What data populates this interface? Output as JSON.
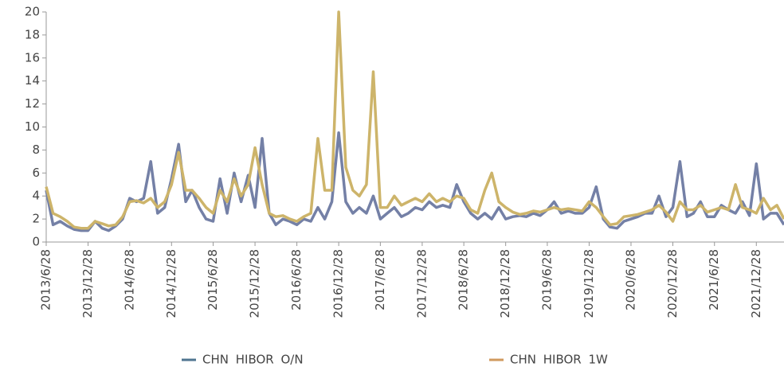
{
  "chart_data": {
    "type": "line",
    "x": [
      "2013/6/28",
      "2013/7/28",
      "2013/8/28",
      "2013/9/28",
      "2013/10/28",
      "2013/11/28",
      "2013/12/28",
      "2014/1/28",
      "2014/2/28",
      "2014/3/28",
      "2014/4/28",
      "2014/5/28",
      "2014/6/28",
      "2014/7/28",
      "2014/8/28",
      "2014/9/28",
      "2014/10/28",
      "2014/11/28",
      "2014/12/28",
      "2015/1/28",
      "2015/2/28",
      "2015/3/28",
      "2015/4/28",
      "2015/5/28",
      "2015/6/28",
      "2015/7/28",
      "2015/8/28",
      "2015/9/28",
      "2015/10/28",
      "2015/11/28",
      "2015/12/28",
      "2016/1/28",
      "2016/2/28",
      "2016/3/28",
      "2016/4/28",
      "2016/5/28",
      "2016/6/28",
      "2016/7/28",
      "2016/8/28",
      "2016/9/28",
      "2016/10/28",
      "2016/11/28",
      "2016/12/28",
      "2017/1/28",
      "2017/2/28",
      "2017/3/28",
      "2017/4/28",
      "2017/5/28",
      "2017/6/28",
      "2017/7/28",
      "2017/8/28",
      "2017/9/28",
      "2017/10/28",
      "2017/11/28",
      "2017/12/28",
      "2018/1/28",
      "2018/2/28",
      "2018/3/28",
      "2018/4/28",
      "2018/5/28",
      "2018/6/28",
      "2018/7/28",
      "2018/8/28",
      "2018/9/28",
      "2018/10/28",
      "2018/11/28",
      "2018/12/28",
      "2019/1/28",
      "2019/2/28",
      "2019/3/28",
      "2019/4/28",
      "2019/5/28",
      "2019/6/28",
      "2019/7/28",
      "2019/8/28",
      "2019/9/28",
      "2019/10/28",
      "2019/11/28",
      "2019/12/28",
      "2020/1/28",
      "2020/2/28",
      "2020/3/28",
      "2020/4/28",
      "2020/5/28",
      "2020/6/28",
      "2020/7/28",
      "2020/8/28",
      "2020/9/28",
      "2020/10/28",
      "2020/11/28",
      "2020/12/28",
      "2021/1/28",
      "2021/2/28",
      "2021/3/28",
      "2021/4/28",
      "2021/5/28",
      "2021/6/28",
      "2021/7/28",
      "2021/8/28",
      "2021/9/28",
      "2021/10/28",
      "2021/11/28",
      "2021/12/28",
      "2022/1/28",
      "2022/2/28",
      "2022/3/28",
      "2022/4/28"
    ],
    "series": [
      {
        "name": "CHN HIBOR O/N",
        "color": "#7480a6",
        "legend_color": "#4f7590",
        "values": [
          4.5,
          1.5,
          1.8,
          1.4,
          1.1,
          1.0,
          1.0,
          1.8,
          1.2,
          1.0,
          1.4,
          2.0,
          3.8,
          3.5,
          3.8,
          7.0,
          2.5,
          3.0,
          5.5,
          8.5,
          3.5,
          4.5,
          3.0,
          2.0,
          1.8,
          5.5,
          2.5,
          6.0,
          3.5,
          5.8,
          3.0,
          9.0,
          2.5,
          1.5,
          2.0,
          1.8,
          1.5,
          2.0,
          1.8,
          3.0,
          2.0,
          3.5,
          9.5,
          3.5,
          2.5,
          3.0,
          2.5,
          4.0,
          2.0,
          2.5,
          3.0,
          2.2,
          2.5,
          3.0,
          2.8,
          3.5,
          3.0,
          3.2,
          3.0,
          5.0,
          3.5,
          2.5,
          2.0,
          2.5,
          2.0,
          3.0,
          2.0,
          2.2,
          2.3,
          2.2,
          2.5,
          2.3,
          2.8,
          3.5,
          2.5,
          2.7,
          2.5,
          2.5,
          3.0,
          4.8,
          2.0,
          1.3,
          1.2,
          1.8,
          2.0,
          2.2,
          2.5,
          2.5,
          4.0,
          2.2,
          3.0,
          7.0,
          2.2,
          2.5,
          3.5,
          2.2,
          2.2,
          3.2,
          2.8,
          2.5,
          3.5,
          2.3,
          6.8,
          2.0,
          2.5,
          2.5,
          1.5
        ]
      },
      {
        "name": "CHN HIBOR 1W",
        "color": "#cdb46a",
        "legend_color": "#d09a5e",
        "values": [
          4.8,
          2.5,
          2.2,
          1.8,
          1.3,
          1.2,
          1.2,
          1.8,
          1.6,
          1.4,
          1.5,
          2.2,
          3.5,
          3.6,
          3.4,
          3.8,
          3.0,
          3.5,
          5.0,
          7.8,
          4.5,
          4.5,
          3.8,
          3.0,
          2.5,
          4.5,
          3.5,
          5.5,
          4.0,
          5.0,
          8.2,
          5.0,
          2.5,
          2.2,
          2.3,
          2.0,
          1.8,
          2.2,
          2.5,
          9.0,
          4.5,
          4.5,
          20,
          6.5,
          4.5,
          4.0,
          5.0,
          14.8,
          3.0,
          3.0,
          4.0,
          3.2,
          3.5,
          3.8,
          3.5,
          4.2,
          3.5,
          3.8,
          3.5,
          4.0,
          3.8,
          2.8,
          2.5,
          4.5,
          6.0,
          3.5,
          3.0,
          2.6,
          2.4,
          2.5,
          2.7,
          2.6,
          2.8,
          3.0,
          2.8,
          2.9,
          2.8,
          2.7,
          3.5,
          3.0,
          2.2,
          1.5,
          1.6,
          2.2,
          2.3,
          2.4,
          2.6,
          2.8,
          3.2,
          2.6,
          1.8,
          3.5,
          2.8,
          2.8,
          3.2,
          2.6,
          2.8,
          3.0,
          2.8,
          5.0,
          3.0,
          2.8,
          2.5,
          3.8,
          2.8,
          3.2,
          2.0
        ]
      }
    ],
    "xlim": [
      "2013/6/28",
      "2022/4/28"
    ],
    "xticks": [
      "2013/6/28",
      "2013/12/28",
      "2014/6/28",
      "2014/12/28",
      "2015/6/28",
      "2015/12/28",
      "2016/6/28",
      "2016/12/28",
      "2017/6/28",
      "2017/12/28",
      "2018/6/28",
      "2018/12/28",
      "2019/6/28",
      "2019/12/28",
      "2020/6/28",
      "2020/12/28",
      "2021/6/28",
      "2021/12/28"
    ],
    "ylim": [
      0,
      20
    ],
    "yticks": [
      0,
      2,
      4,
      6,
      8,
      10,
      12,
      14,
      16,
      18,
      20
    ],
    "grid": false,
    "legend": "bottom"
  }
}
